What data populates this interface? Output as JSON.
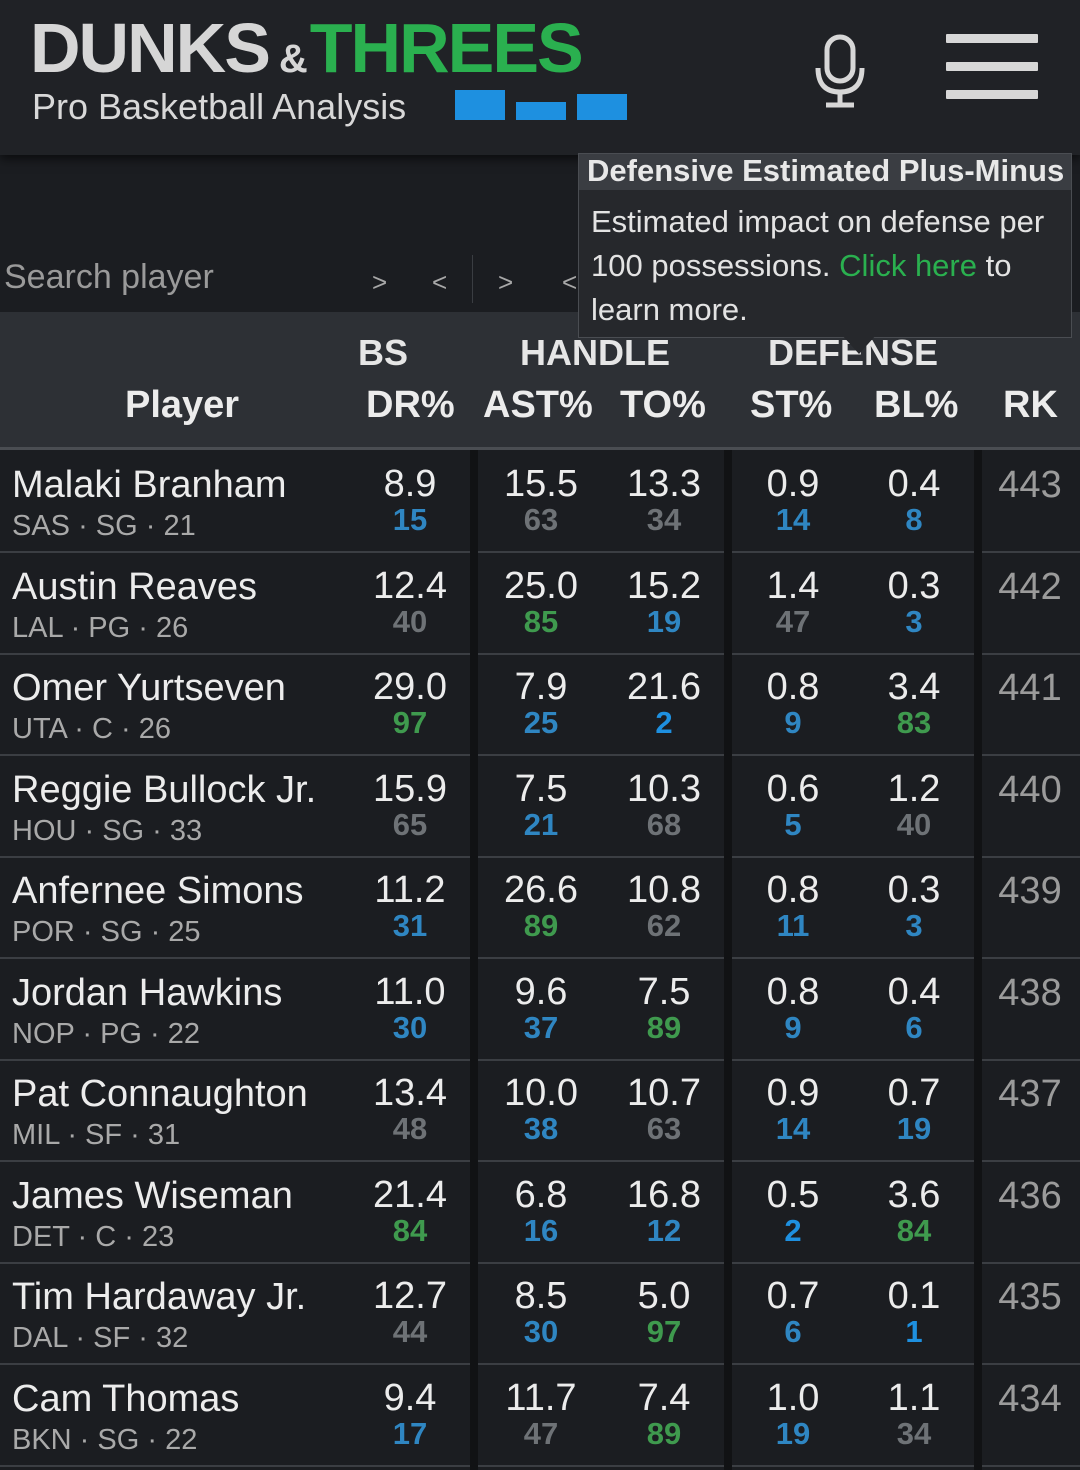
{
  "brand": {
    "dunks": "DUNKS",
    "amp": "&",
    "threes": "THREES",
    "subtitle": "Pro Basketball Analysis"
  },
  "colors": {
    "accent_green": "#2ab04f",
    "accent_blue": "#1e90e0",
    "pct_green": "#3f9a4e",
    "pct_blue": "#2f86c2",
    "pct_gray": "#6e7276"
  },
  "search": {
    "placeholder": "Search player",
    "value": ""
  },
  "scroll_arrows": [
    ">",
    "<",
    ">",
    "<"
  ],
  "tooltip": {
    "title": "Defensive Estimated Plus-Minus",
    "body": "Estimated impact on defense per 100 possessions.",
    "link": "Click here",
    "tail": "to learn more."
  },
  "groups": {
    "rebounds_partial": "BS",
    "handle": "HANDLE",
    "defense": "DEFENSE"
  },
  "columns": {
    "player": "Player",
    "dr": "DR%",
    "ast": "AST%",
    "to": "TO%",
    "st": "ST%",
    "bl": "BL%",
    "rk": "RK"
  },
  "rows": [
    {
      "name": "Malaki Branham",
      "meta": "SAS · SG · 21",
      "dr": [
        "8.9",
        "15",
        "b"
      ],
      "ast": [
        "15.5",
        "63",
        "g"
      ],
      "to": [
        "13.3",
        "34",
        "g"
      ],
      "st": [
        "0.9",
        "14",
        "b"
      ],
      "bl": [
        "0.4",
        "8",
        "b"
      ],
      "rk": "443"
    },
    {
      "name": "Austin Reaves",
      "meta": "LAL · PG · 26",
      "dr": [
        "12.4",
        "40",
        "g"
      ],
      "ast": [
        "25.0",
        "85",
        "G"
      ],
      "to": [
        "15.2",
        "19",
        "b"
      ],
      "st": [
        "1.4",
        "47",
        "g"
      ],
      "bl": [
        "0.3",
        "3",
        "b"
      ],
      "rk": "442"
    },
    {
      "name": "Omer Yurtseven",
      "meta": "UTA · C · 26",
      "dr": [
        "29.0",
        "97",
        "G"
      ],
      "ast": [
        "7.9",
        "25",
        "b"
      ],
      "to": [
        "21.6",
        "2",
        "B"
      ],
      "st": [
        "0.8",
        "9",
        "b"
      ],
      "bl": [
        "3.4",
        "83",
        "G"
      ],
      "rk": "441"
    },
    {
      "name": "Reggie Bullock Jr.",
      "meta": "HOU · SG · 33",
      "dr": [
        "15.9",
        "65",
        "g"
      ],
      "ast": [
        "7.5",
        "21",
        "b"
      ],
      "to": [
        "10.3",
        "68",
        "g"
      ],
      "st": [
        "0.6",
        "5",
        "b"
      ],
      "bl": [
        "1.2",
        "40",
        "g"
      ],
      "rk": "440"
    },
    {
      "name": "Anfernee Simons",
      "meta": "POR · SG · 25",
      "dr": [
        "11.2",
        "31",
        "b"
      ],
      "ast": [
        "26.6",
        "89",
        "G"
      ],
      "to": [
        "10.8",
        "62",
        "g"
      ],
      "st": [
        "0.8",
        "11",
        "b"
      ],
      "bl": [
        "0.3",
        "3",
        "b"
      ],
      "rk": "439"
    },
    {
      "name": "Jordan Hawkins",
      "meta": "NOP · PG · 22",
      "dr": [
        "11.0",
        "30",
        "b"
      ],
      "ast": [
        "9.6",
        "37",
        "b"
      ],
      "to": [
        "7.5",
        "89",
        "G"
      ],
      "st": [
        "0.8",
        "9",
        "b"
      ],
      "bl": [
        "0.4",
        "6",
        "b"
      ],
      "rk": "438"
    },
    {
      "name": "Pat Connaughton",
      "meta": "MIL · SF · 31",
      "dr": [
        "13.4",
        "48",
        "g"
      ],
      "ast": [
        "10.0",
        "38",
        "b"
      ],
      "to": [
        "10.7",
        "63",
        "g"
      ],
      "st": [
        "0.9",
        "14",
        "b"
      ],
      "bl": [
        "0.7",
        "19",
        "b"
      ],
      "rk": "437"
    },
    {
      "name": "James Wiseman",
      "meta": "DET · C · 23",
      "dr": [
        "21.4",
        "84",
        "G"
      ],
      "ast": [
        "6.8",
        "16",
        "b"
      ],
      "to": [
        "16.8",
        "12",
        "b"
      ],
      "st": [
        "0.5",
        "2",
        "B"
      ],
      "bl": [
        "3.6",
        "84",
        "G"
      ],
      "rk": "436"
    },
    {
      "name": "Tim Hardaway Jr.",
      "meta": "DAL · SF · 32",
      "dr": [
        "12.7",
        "44",
        "g"
      ],
      "ast": [
        "8.5",
        "30",
        "b"
      ],
      "to": [
        "5.0",
        "97",
        "G"
      ],
      "st": [
        "0.7",
        "6",
        "b"
      ],
      "bl": [
        "0.1",
        "1",
        "B"
      ],
      "rk": "435"
    },
    {
      "name": "Cam Thomas",
      "meta": "BKN · SG · 22",
      "dr": [
        "9.4",
        "17",
        "b"
      ],
      "ast": [
        "11.7",
        "47",
        "g"
      ],
      "to": [
        "7.4",
        "89",
        "G"
      ],
      "st": [
        "1.0",
        "19",
        "b"
      ],
      "bl": [
        "1.1",
        "34",
        "g"
      ],
      "rk": "434"
    }
  ]
}
